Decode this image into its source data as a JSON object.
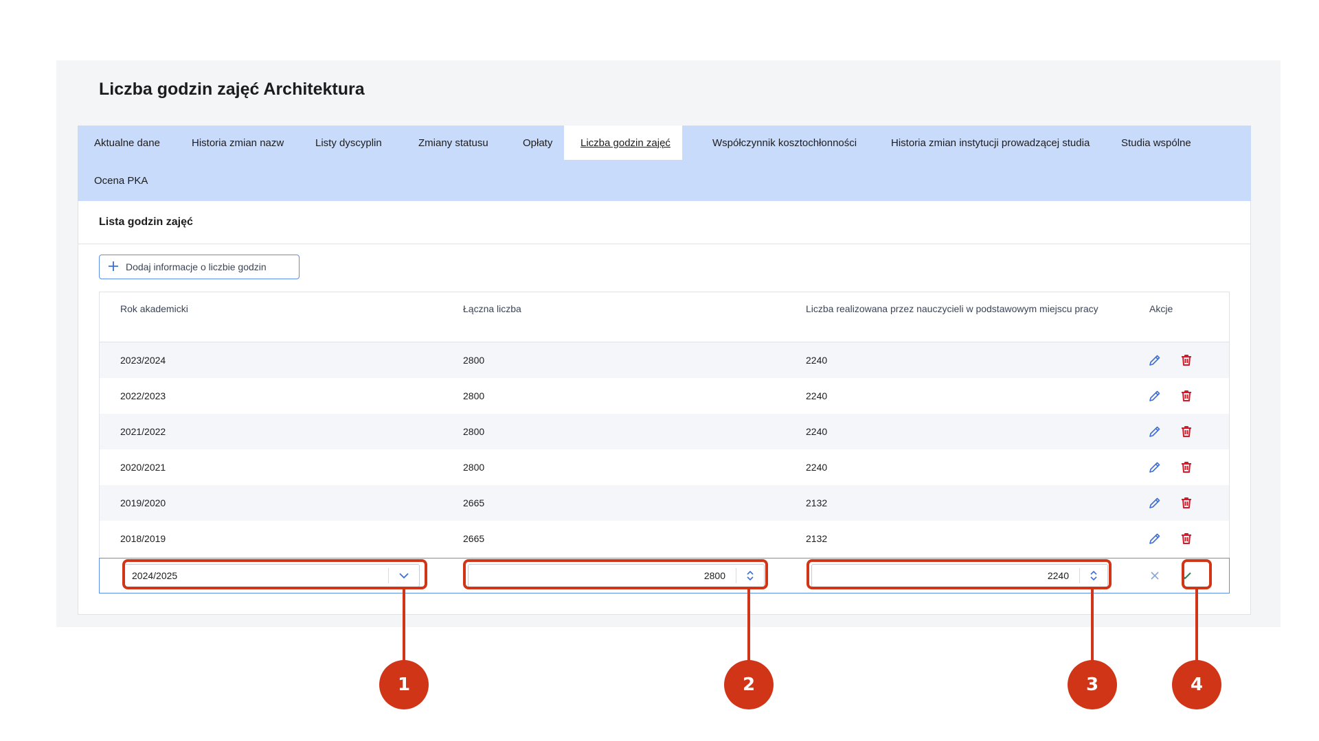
{
  "page": {
    "title": "Liczba godzin zajęć Architektura"
  },
  "tabs": [
    {
      "label": "Aktualne dane"
    },
    {
      "label": "Historia zmian nazw"
    },
    {
      "label": "Listy dyscyplin"
    },
    {
      "label": "Zmiany statusu"
    },
    {
      "label": "Opłaty"
    },
    {
      "label": "Liczba godzin zajęć",
      "active": true
    },
    {
      "label": "Współczynnik kosztochłonności"
    },
    {
      "label": "Historia zmian instytucji prowadzącej studia"
    },
    {
      "label": "Studia wspólne"
    },
    {
      "label": "Ocena PKA"
    }
  ],
  "section": {
    "title": "Lista godzin zajęć",
    "add_button_label": "Dodaj informacje o liczbie godzin"
  },
  "table": {
    "columns": [
      "Rok akademicki",
      "Łączna liczba",
      "Liczba realizowana przez nauczycieli w podstawowym miejscu pracy",
      "Akcje"
    ],
    "rows": [
      {
        "year": "2023/2024",
        "total": "2800",
        "teachers": "2240"
      },
      {
        "year": "2022/2023",
        "total": "2800",
        "teachers": "2240"
      },
      {
        "year": "2021/2022",
        "total": "2800",
        "teachers": "2240"
      },
      {
        "year": "2020/2021",
        "total": "2800",
        "teachers": "2240"
      },
      {
        "year": "2019/2020",
        "total": "2665",
        "teachers": "2132"
      },
      {
        "year": "2018/2019",
        "total": "2665",
        "teachers": "2132"
      }
    ],
    "edit_row": {
      "year": "2024/2025",
      "total": "2800",
      "teachers": "2240"
    }
  },
  "callouts": [
    "1",
    "2",
    "3",
    "4"
  ],
  "colors": {
    "tab_bar": "#c9dbfb",
    "accent_blue": "#3b6fd6",
    "delete_red": "#d11a2a",
    "confirm_green": "#2e7d4f",
    "callout_red": "#d03518"
  },
  "icons": {
    "add": "plus-icon",
    "edit": "pencil-icon",
    "delete": "trash-icon",
    "dropdown": "chevron-down-icon",
    "stepper": "up-down-arrows-icon",
    "cancel": "close-icon",
    "confirm": "check-icon"
  }
}
